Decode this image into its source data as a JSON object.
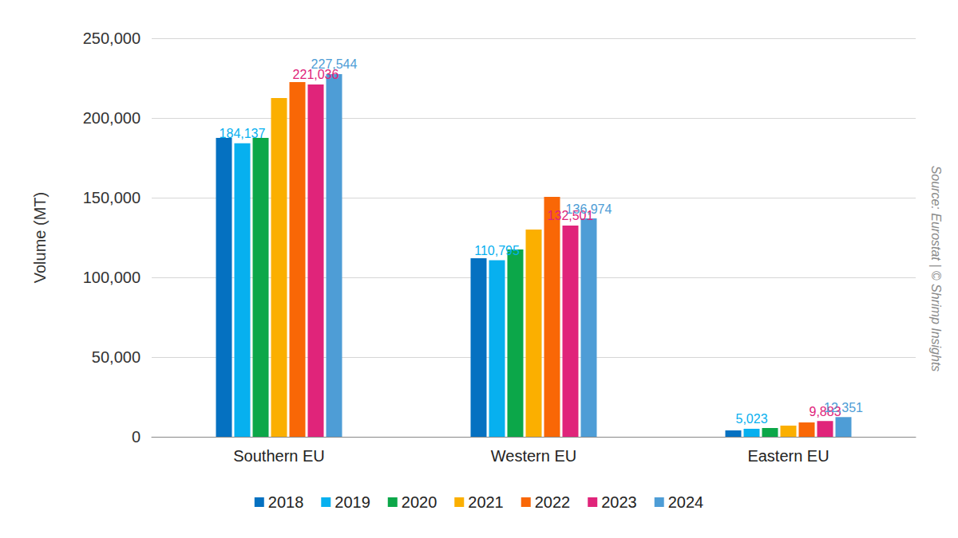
{
  "chart_data": {
    "type": "bar",
    "y_label": "Volume (MT)",
    "annotation": "Source: Eurostat | © Shrimp Insights",
    "categories": [
      "Southern EU",
      "Western EU",
      "Eastern EU"
    ],
    "series": [
      {
        "name": "2018",
        "color": "#0571c1",
        "values": [
          187500,
          112000,
          4000
        ]
      },
      {
        "name": "2019",
        "color": "#07b0ef",
        "values": [
          184137,
          110795,
          5023
        ],
        "value_labels": [
          "184,137",
          "110,795",
          "5,023"
        ]
      },
      {
        "name": "2020",
        "color": "#0ca749",
        "values": [
          187500,
          117500,
          5500
        ]
      },
      {
        "name": "2021",
        "color": "#fbaf00",
        "values": [
          212500,
          130000,
          7000
        ]
      },
      {
        "name": "2022",
        "color": "#f96706",
        "values": [
          222500,
          150500,
          9000
        ]
      },
      {
        "name": "2023",
        "color": "#e0247a",
        "values": [
          221036,
          132501,
          9883
        ],
        "value_labels": [
          "221,036",
          "132,501",
          "9,883"
        ]
      },
      {
        "name": "2024",
        "color": "#4e9dd6",
        "values": [
          227544,
          136974,
          12351
        ],
        "value_labels": [
          "227,544",
          "136,974",
          "12,351"
        ]
      }
    ],
    "ylim": [
      0,
      250000
    ],
    "yticks": [
      0,
      {
        "value": 50000,
        "label": "50,000"
      },
      {
        "value": 100000,
        "label": "100,000"
      },
      {
        "value": 150000,
        "label": "150,000"
      },
      {
        "value": 200000,
        "label": "200,000"
      },
      {
        "value": 250000,
        "label": "250,000"
      }
    ],
    "grid": true,
    "legend": "bottom"
  }
}
